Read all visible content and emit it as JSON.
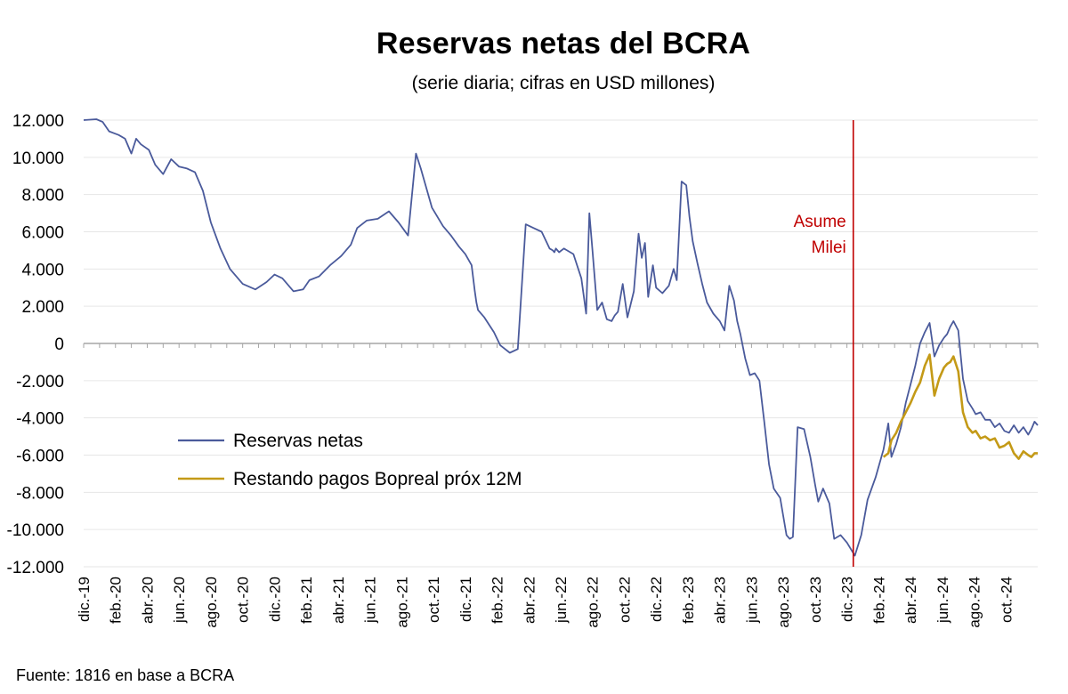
{
  "chart_data": {
    "type": "line",
    "title": "Reservas netas del BCRA",
    "subtitle": "(serie diaria; cifras en USD millones)",
    "source": "Fuente: 1816 en base a BCRA",
    "ylim": [
      -12000,
      12000
    ],
    "yticks": [
      12000,
      10000,
      8000,
      6000,
      4000,
      2000,
      0,
      -2000,
      -4000,
      -6000,
      -8000,
      -10000,
      -12000
    ],
    "ytick_labels": [
      "12.000",
      "10.000",
      "8.000",
      "6.000",
      "4.000",
      "2.000",
      "0",
      "-2.000",
      "-4.000",
      "-6.000",
      "-8.000",
      "-10.000",
      "-12.000"
    ],
    "x_range_months": [
      0,
      60
    ],
    "xtick_labels": [
      "dic.-19",
      "feb.-20",
      "abr.-20",
      "jun.-20",
      "ago.-20",
      "oct.-20",
      "dic.-20",
      "feb.-21",
      "abr.-21",
      "jun.-21",
      "ago.-21",
      "oct.-21",
      "dic.-21",
      "feb.-22",
      "abr.-22",
      "jun.-22",
      "ago.-22",
      "oct.-22",
      "dic.-22",
      "feb.-23",
      "abr.-23",
      "jun.-23",
      "ago.-23",
      "oct.-23",
      "dic.-23",
      "feb.-24",
      "abr.-24",
      "jun.-24",
      "ago.-24",
      "oct.-24"
    ],
    "annotation": {
      "line1": "Asume",
      "line2": "Milei",
      "x_month": 48.4,
      "color": "#c00000"
    },
    "series": [
      {
        "name": "Reservas netas",
        "color": "#4a5a9b",
        "x": [
          0,
          0.8,
          1.2,
          1.6,
          2.2,
          2.6,
          3.0,
          3.3,
          3.6,
          4.1,
          4.5,
          5.0,
          5.5,
          6.0,
          6.5,
          7.0,
          7.5,
          8.0,
          8.6,
          9.2,
          10.0,
          10.8,
          11.5,
          12.0,
          12.5,
          13.2,
          13.8,
          14.2,
          14.8,
          15.5,
          16.2,
          16.8,
          17.2,
          17.8,
          18.5,
          19.2,
          19.8,
          20.4,
          20.9,
          21.2,
          21.9,
          22.6,
          23.1,
          23.6,
          24.0,
          24.4,
          24.6,
          24.7,
          24.8,
          25.2,
          25.8,
          26.2,
          26.8,
          27.3,
          27.8,
          28.3,
          28.8,
          29.3,
          29.5,
          29.6,
          29.7,
          29.9,
          30.2,
          30.8,
          31.3,
          31.6,
          31.8,
          32.0,
          32.3,
          32.6,
          32.9,
          33.2,
          33.4,
          33.6,
          33.9,
          34.2,
          34.6,
          34.9,
          35.1,
          35.3,
          35.5,
          35.8,
          36.0,
          36.4,
          36.8,
          37.1,
          37.3,
          37.6,
          37.9,
          38.1,
          38.3,
          38.6,
          38.9,
          39.2,
          39.6,
          40.0,
          40.3,
          40.6,
          40.9,
          41.1,
          41.3,
          41.6,
          41.9,
          42.2,
          42.5,
          42.8,
          43.1,
          43.4,
          43.8,
          44.2,
          44.4,
          44.6,
          44.9,
          45.3,
          45.7,
          46.0,
          46.2,
          46.5,
          46.9,
          47.2,
          47.6,
          48.0,
          48.5,
          48.9,
          49.3,
          49.8,
          50.3,
          50.6,
          50.8,
          51.1,
          51.4,
          51.7,
          52.0,
          52.3,
          52.6,
          52.9,
          53.2,
          53.5,
          53.8,
          54.1,
          54.3,
          54.5,
          54.7,
          55.0,
          55.3,
          55.6,
          55.9,
          56.1,
          56.4,
          56.7,
          57.0,
          57.3,
          57.6,
          57.9,
          58.2,
          58.5,
          58.8,
          59.1,
          59.4,
          59.6,
          59.8,
          60.0
        ],
        "y": [
          12000,
          12050,
          11900,
          11400,
          11200,
          11000,
          10200,
          11000,
          10700,
          10400,
          9600,
          9100,
          9900,
          9500,
          9400,
          9200,
          8200,
          6500,
          5100,
          4000,
          3200,
          2900,
          3300,
          3700,
          3500,
          2800,
          2900,
          3400,
          3600,
          4200,
          4700,
          5300,
          6200,
          6600,
          6700,
          7100,
          6500,
          5800,
          10200,
          9400,
          7300,
          6300,
          5800,
          5200,
          4800,
          4200,
          2800,
          2200,
          1800,
          1400,
          600,
          -100,
          -500,
          -300,
          6400,
          6200,
          6000,
          5100,
          5000,
          4900,
          5100,
          4900,
          5100,
          4800,
          3500,
          1600,
          7000,
          5000,
          1800,
          2200,
          1300,
          1200,
          1500,
          1700,
          3200,
          1400,
          2800,
          5900,
          4600,
          5400,
          2500,
          4200,
          3000,
          2700,
          3100,
          4000,
          3400,
          8700,
          8500,
          6800,
          5500,
          4300,
          3200,
          2200,
          1600,
          1200,
          700,
          3100,
          2300,
          1200,
          500,
          -800,
          -1700,
          -1600,
          -2000,
          -4200,
          -6500,
          -7800,
          -8300,
          -10300,
          -10500,
          -10400,
          -4500,
          -4600,
          -6100,
          -7600,
          -8500,
          -7800,
          -8600,
          -10500,
          -10300,
          -10700,
          -11400,
          -10300,
          -8400,
          -7200,
          -5700,
          -4300,
          -6100,
          -5400,
          -4500,
          -3200,
          -2200,
          -1200,
          0,
          600,
          1100,
          -700,
          -100,
          300,
          500,
          900,
          1200,
          700,
          -1900,
          -3100,
          -3500,
          -3800,
          -3700,
          -4100,
          -4100,
          -4500,
          -4300,
          -4700,
          -4800,
          -4400,
          -4800,
          -4500,
          -4900,
          -4600,
          -4200,
          -4400
        ]
      },
      {
        "name": "Restando pagos Bopreal próx 12M",
        "color": "#c49a17",
        "x": [
          50.3,
          50.6,
          50.8,
          51.1,
          51.4,
          51.7,
          52.0,
          52.3,
          52.6,
          52.9,
          53.2,
          53.5,
          53.8,
          54.1,
          54.3,
          54.5,
          54.7,
          55.0,
          55.3,
          55.6,
          55.9,
          56.1,
          56.4,
          56.7,
          57.0,
          57.3,
          57.6,
          57.9,
          58.2,
          58.5,
          58.8,
          59.1,
          59.4,
          59.6,
          59.8,
          60.0
        ],
        "y": [
          -6100,
          -5900,
          -5200,
          -4800,
          -4200,
          -3700,
          -3200,
          -2600,
          -2100,
          -1200,
          -600,
          -2800,
          -1900,
          -1300,
          -1100,
          -1000,
          -700,
          -1500,
          -3700,
          -4500,
          -4800,
          -4700,
          -5100,
          -5000,
          -5200,
          -5100,
          -5600,
          -5500,
          -5300,
          -5900,
          -6200,
          -5800,
          -6000,
          -6100,
          -5900,
          -5900
        ]
      }
    ]
  }
}
